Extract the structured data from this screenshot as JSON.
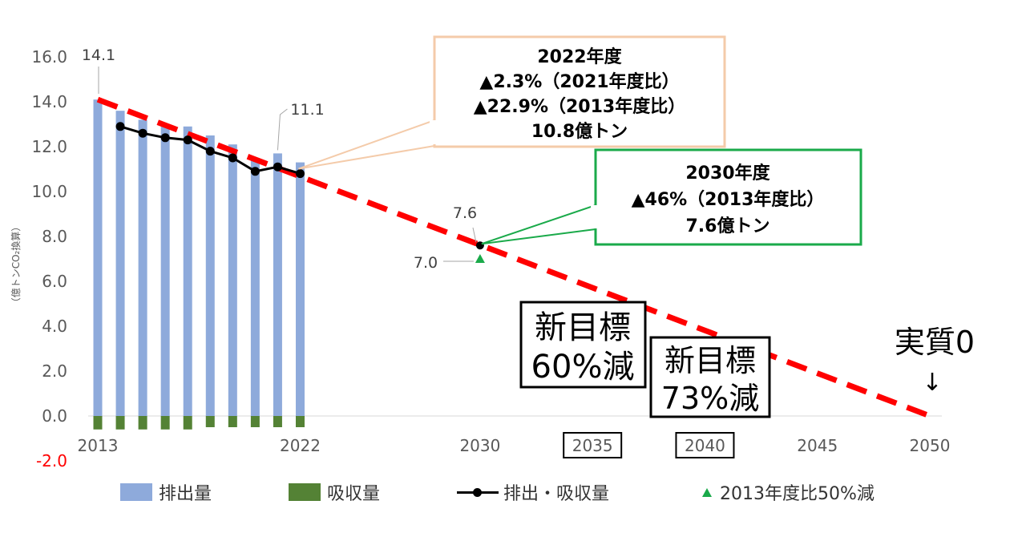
{
  "chart_data": {
    "type": "bar",
    "y_axis": {
      "ticks": [
        "16.0",
        "14.0",
        "12.0",
        "10.0",
        "8.0",
        "6.0",
        "4.0",
        "2.0",
        "0.0",
        "-2.0"
      ],
      "tick_values": [
        16,
        14,
        12,
        10,
        8,
        6,
        4,
        2,
        0,
        -2
      ],
      "ylim": [
        -2,
        16
      ],
      "label": "（億トンCO₂換算）"
    },
    "x_axis": {
      "xlim": [
        2013,
        2050
      ],
      "ticks": [
        {
          "label": "2013",
          "value": 2013,
          "boxed": false
        },
        {
          "label": "2022",
          "value": 2022,
          "boxed": false
        },
        {
          "label": "2030",
          "value": 2030,
          "boxed": false
        },
        {
          "label": "2035",
          "value": 2035,
          "boxed": true
        },
        {
          "label": "2040",
          "value": 2040,
          "boxed": true
        },
        {
          "label": "2045",
          "value": 2045,
          "boxed": false
        },
        {
          "label": "2050",
          "value": 2050,
          "boxed": false
        }
      ]
    },
    "years": [
      2013,
      2014,
      2015,
      2016,
      2017,
      2018,
      2019,
      2020,
      2021,
      2022
    ],
    "series": [
      {
        "name": "排出量",
        "kind": "bar",
        "color": "#8eaadb",
        "values": [
          14.1,
          13.6,
          13.2,
          12.9,
          12.9,
          12.5,
          12.1,
          11.5,
          11.7,
          11.3
        ]
      },
      {
        "name": "吸収量",
        "kind": "bar",
        "color": "#548235",
        "values": [
          -0.6,
          -0.6,
          -0.6,
          -0.6,
          -0.6,
          -0.5,
          -0.5,
          -0.5,
          -0.5,
          -0.5
        ]
      },
      {
        "name": "排出・吸収量",
        "kind": "line",
        "color": "#000000",
        "values": [
          null,
          12.9,
          12.6,
          12.4,
          12.3,
          11.8,
          11.5,
          10.9,
          11.1,
          10.8
        ]
      },
      {
        "name": "2013年度比50%減",
        "kind": "marker",
        "color": "#1aaa4a",
        "points": [
          {
            "x": 2030,
            "y": 7.0
          }
        ]
      }
    ],
    "target_path": {
      "color": "#ff0000",
      "points": [
        [
          2013,
          14.1
        ],
        [
          2050,
          0.0
        ]
      ]
    },
    "target_2030_point": {
      "x": 2030,
      "y": 7.6
    },
    "data_labels": [
      {
        "text": "14.1",
        "x": 2013,
        "y": 14.1
      },
      {
        "text": "11.1",
        "x": 2021,
        "y": 11.7
      },
      {
        "text": "7.6",
        "x": 2030,
        "y": 7.6
      },
      {
        "text": "7.0",
        "x": 2030,
        "y": 7.0
      }
    ],
    "callouts": [
      {
        "border_color": "#f4cbaa",
        "anchor": {
          "x": 2022,
          "y": 10.8
        },
        "lines": [
          "2022年度",
          "▲2.3%（2021年度比）",
          "▲22.9%（2013年度比）",
          "10.8億トン"
        ]
      },
      {
        "border_color": "#1aaa4a",
        "anchor": {
          "x": 2030,
          "y": 7.6
        },
        "lines": [
          "2030年度",
          "▲46%（2013年度比）",
          "7.6億トン"
        ]
      }
    ],
    "annotations": [
      {
        "lines": [
          "新目標",
          "60%減"
        ]
      },
      {
        "lines": [
          "新目標",
          "73%減"
        ]
      },
      {
        "text": "実質0",
        "arrow": "↓"
      }
    ],
    "legend_position": "bottom"
  },
  "legend": [
    {
      "label": "排出量",
      "color": "#8eaadb"
    },
    {
      "label": "吸収量",
      "color": "#548235"
    },
    {
      "label": "排出・吸収量",
      "color": "#000000"
    },
    {
      "label": "2013年度比50%減",
      "color": "#1aaa4a"
    }
  ]
}
